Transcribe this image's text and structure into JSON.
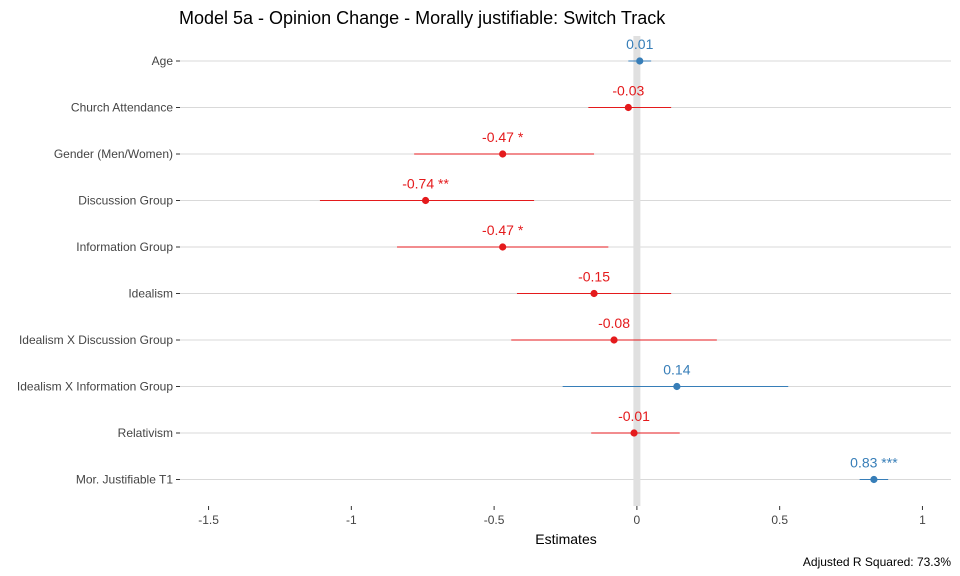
{
  "chart_data": {
    "type": "forest",
    "title": "Model 5a - Opinion Change - Morally justifiable: Switch Track",
    "xlabel": "Estimates",
    "ylabel": "",
    "caption": "Adjusted R Squared: 73.3%",
    "xlim": [
      -1.6,
      1.1
    ],
    "xticks": [
      -1.5,
      -1,
      -0.5,
      0,
      0.5,
      1
    ],
    "xtick_labels": [
      "-1.5",
      "-1",
      "-0.5",
      "0",
      "0.5",
      "1"
    ],
    "reference_line": 0,
    "grid": "horizontal",
    "colors": {
      "positive": "#377EB8",
      "negative": "#E41A1C",
      "reference": "#E0E0E0",
      "grid": "#D9D9D9"
    },
    "terms": [
      {
        "label": "Age",
        "estimate": 0.01,
        "ci_low": -0.03,
        "ci_high": 0.05,
        "text": "0.01"
      },
      {
        "label": "Church Attendance",
        "estimate": -0.03,
        "ci_low": -0.17,
        "ci_high": 0.12,
        "text": "-0.03"
      },
      {
        "label": "Gender (Men/Women)",
        "estimate": -0.47,
        "ci_low": -0.78,
        "ci_high": -0.15,
        "text": "-0.47 *"
      },
      {
        "label": "Discussion Group",
        "estimate": -0.74,
        "ci_low": -1.11,
        "ci_high": -0.36,
        "text": "-0.74 **"
      },
      {
        "label": "Information Group",
        "estimate": -0.47,
        "ci_low": -0.84,
        "ci_high": -0.1,
        "text": "-0.47 *"
      },
      {
        "label": "Idealism",
        "estimate": -0.15,
        "ci_low": -0.42,
        "ci_high": 0.12,
        "text": "-0.15"
      },
      {
        "label": "Idealism X Discussion Group",
        "estimate": -0.08,
        "ci_low": -0.44,
        "ci_high": 0.28,
        "text": "-0.08"
      },
      {
        "label": "Idealism X Information Group",
        "estimate": 0.14,
        "ci_low": -0.26,
        "ci_high": 0.53,
        "text": "0.14"
      },
      {
        "label": "Relativism",
        "estimate": -0.01,
        "ci_low": -0.16,
        "ci_high": 0.15,
        "text": "-0.01"
      },
      {
        "label": "Mor. Justifiable T1",
        "estimate": 0.83,
        "ci_low": 0.78,
        "ci_high": 0.88,
        "text": "0.83 ***"
      }
    ]
  }
}
